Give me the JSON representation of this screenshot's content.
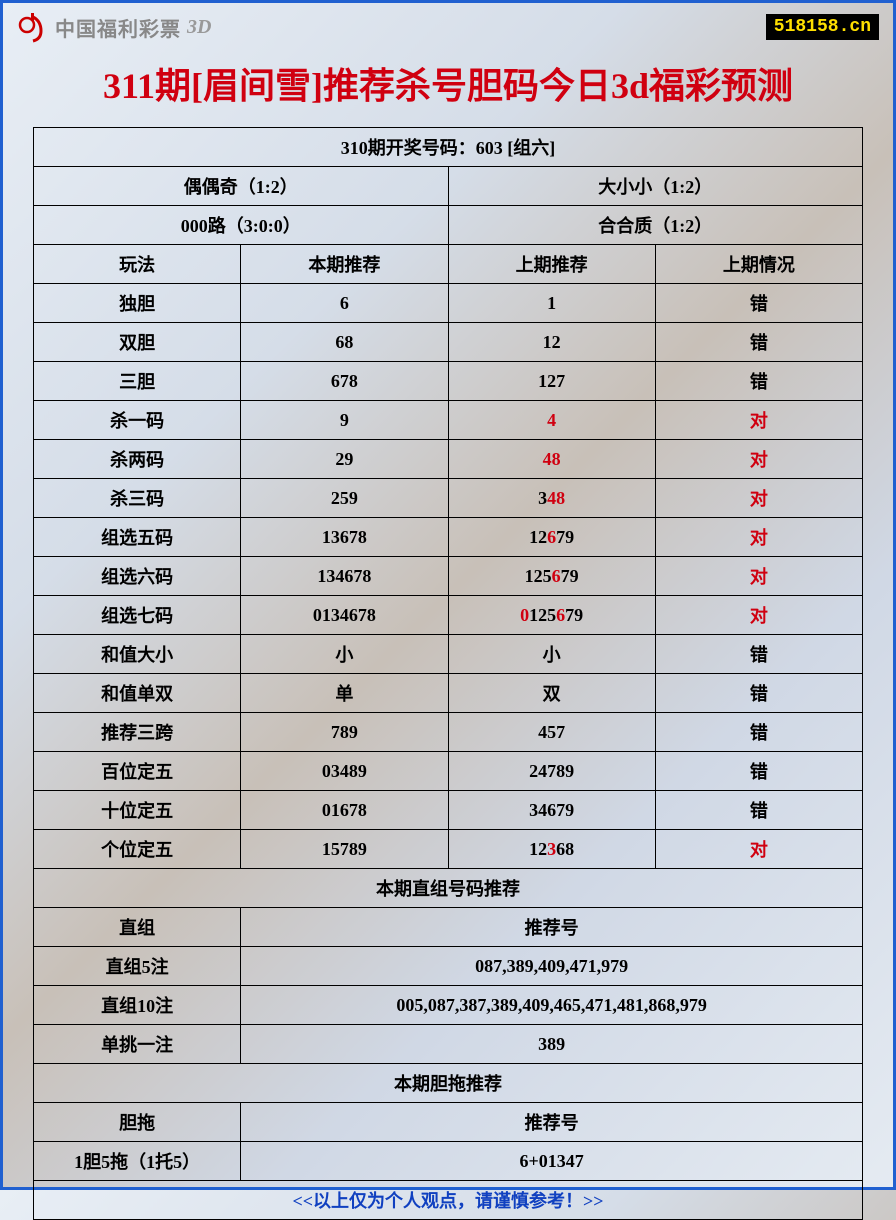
{
  "header": {
    "logo_text": "中国福利彩票",
    "logo_3d": "3D",
    "site": "518158.cn"
  },
  "title": "311期[眉间雪]推荐杀号胆码今日3d福彩预测",
  "draw_info": "310期开奖号码：603 [组六]",
  "summary": {
    "r1c1": "偶偶奇（1:2）",
    "r1c2": "大小小（1:2）",
    "r2c1": "000路（3:0:0）",
    "r2c2": "合合质（1:2）"
  },
  "headers": {
    "c1": "玩法",
    "c2": "本期推荐",
    "c3": "上期推荐",
    "c4": "上期情况"
  },
  "rows": [
    {
      "play": "独胆",
      "cur": "6",
      "prev": [
        {
          "t": "1",
          "r": false
        }
      ],
      "res": "错",
      "res_red": false
    },
    {
      "play": "双胆",
      "cur": "68",
      "prev": [
        {
          "t": "12",
          "r": false
        }
      ],
      "res": "错",
      "res_red": false
    },
    {
      "play": "三胆",
      "cur": "678",
      "prev": [
        {
          "t": "127",
          "r": false
        }
      ],
      "res": "错",
      "res_red": false
    },
    {
      "play": "杀一码",
      "cur": "9",
      "prev": [
        {
          "t": "4",
          "r": true
        }
      ],
      "res": "对",
      "res_red": true
    },
    {
      "play": "杀两码",
      "cur": "29",
      "prev": [
        {
          "t": "48",
          "r": true
        }
      ],
      "res": "对",
      "res_red": true
    },
    {
      "play": "杀三码",
      "cur": "259",
      "prev": [
        {
          "t": "3",
          "r": false
        },
        {
          "t": "48",
          "r": true
        }
      ],
      "res": "对",
      "res_red": true
    },
    {
      "play": "组选五码",
      "cur": "13678",
      "prev": [
        {
          "t": "12",
          "r": false
        },
        {
          "t": "6",
          "r": true
        },
        {
          "t": "79",
          "r": false
        }
      ],
      "res": "对",
      "res_red": true
    },
    {
      "play": "组选六码",
      "cur": "134678",
      "prev": [
        {
          "t": "125",
          "r": false
        },
        {
          "t": "6",
          "r": true
        },
        {
          "t": "79",
          "r": false
        }
      ],
      "res": "对",
      "res_red": true
    },
    {
      "play": "组选七码",
      "cur": "0134678",
      "prev": [
        {
          "t": "0",
          "r": true
        },
        {
          "t": "125",
          "r": false
        },
        {
          "t": "6",
          "r": true
        },
        {
          "t": "79",
          "r": false
        }
      ],
      "res": "对",
      "res_red": true
    },
    {
      "play": "和值大小",
      "cur": "小",
      "prev": [
        {
          "t": "小",
          "r": false
        }
      ],
      "res": "错",
      "res_red": false
    },
    {
      "play": "和值单双",
      "cur": "单",
      "prev": [
        {
          "t": "双",
          "r": false
        }
      ],
      "res": "错",
      "res_red": false
    },
    {
      "play": "推荐三跨",
      "cur": "789",
      "prev": [
        {
          "t": "457",
          "r": false
        }
      ],
      "res": "错",
      "res_red": false
    },
    {
      "play": "百位定五",
      "cur": "03489",
      "prev": [
        {
          "t": "24789",
          "r": false
        }
      ],
      "res": "错",
      "res_red": false
    },
    {
      "play": "十位定五",
      "cur": "01678",
      "prev": [
        {
          "t": "34679",
          "r": false
        }
      ],
      "res": "错",
      "res_red": false
    },
    {
      "play": "个位定五",
      "cur": "15789",
      "prev": [
        {
          "t": "12",
          "r": false
        },
        {
          "t": "3",
          "r": true
        },
        {
          "t": "68",
          "r": false
        }
      ],
      "res": "对",
      "res_red": true
    }
  ],
  "zhizu": {
    "section_title": "本期直组号码推荐",
    "col_label": "直组",
    "col_rec": "推荐号",
    "items": [
      {
        "label": "直组5注",
        "val": "087,389,409,471,979"
      },
      {
        "label": "直组10注",
        "val": "005,087,387,389,409,465,471,481,868,979"
      },
      {
        "label": "单挑一注",
        "val": "389"
      }
    ]
  },
  "dantuo": {
    "section_title": "本期胆拖推荐",
    "col_label": "胆拖",
    "col_rec": "推荐号",
    "items": [
      {
        "label": "1胆5拖（1托5）",
        "val": "6+01347"
      }
    ]
  },
  "footer": "<<以上仅为个人观点，请谨慎参考！>>",
  "colors": {
    "border": "#2060d0",
    "title": "#d00010",
    "highlight": "#d00010",
    "footer": "#1040c0",
    "badge_bg": "#000000",
    "badge_fg": "#ffe000"
  }
}
